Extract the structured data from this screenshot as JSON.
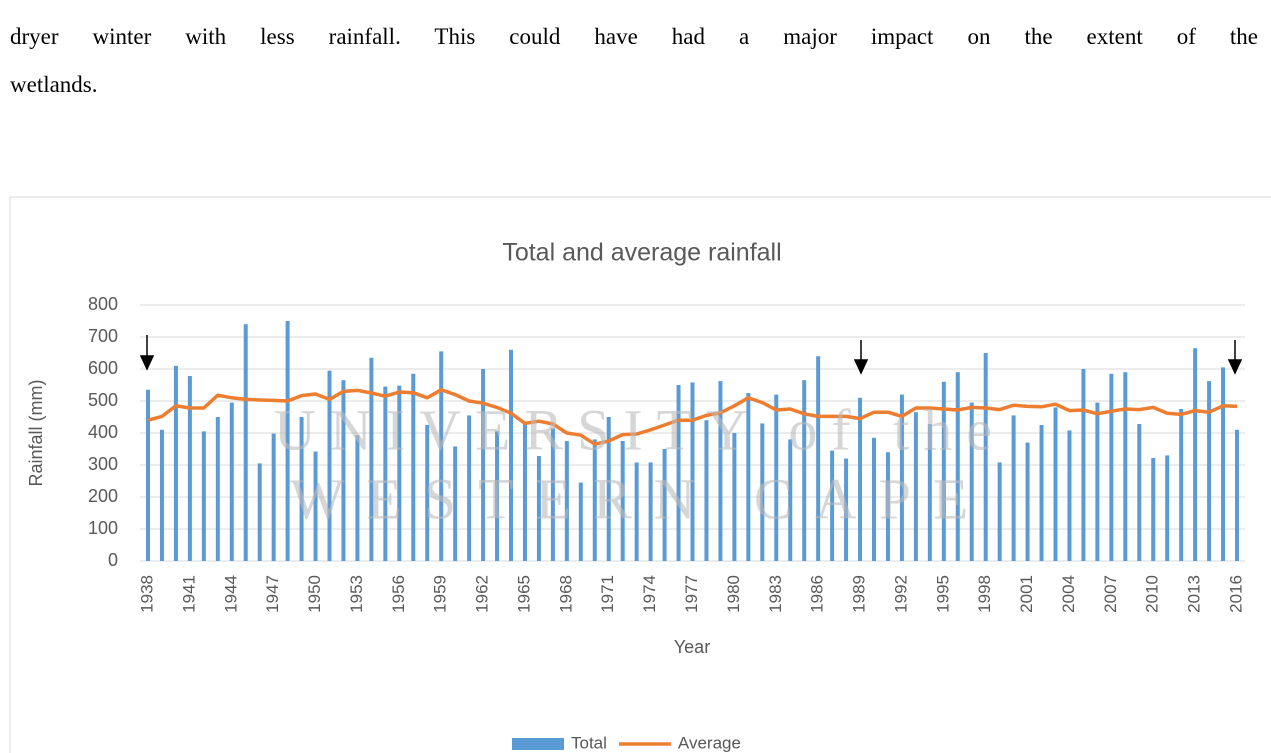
{
  "paragraph": [
    "dryer winter with less rainfall. This could have had a major impact on the extent of the",
    "wetlands."
  ],
  "watermark": [
    "UNIVERSITY of the",
    "WESTERN CAPE"
  ],
  "chart_data": {
    "type": "bar_line",
    "title": "Total and average rainfall",
    "x_label": "Year",
    "y_label": "Rainfall (mm)",
    "categories": [
      "1938",
      null,
      null,
      "1941",
      null,
      null,
      "1944",
      null,
      null,
      "1947",
      null,
      null,
      "1950",
      null,
      null,
      "1953",
      null,
      null,
      "1956",
      null,
      null,
      "1959",
      null,
      null,
      "1962",
      null,
      null,
      "1965",
      null,
      null,
      "1968",
      null,
      null,
      "1971",
      null,
      null,
      "1974",
      null,
      null,
      "1977",
      null,
      null,
      "1980",
      null,
      null,
      "1983",
      null,
      null,
      "1986",
      null,
      null,
      "1989",
      null,
      null,
      "1992",
      null,
      null,
      "1995",
      null,
      null,
      "1998",
      null,
      null,
      "2001",
      null,
      null,
      "2004",
      null,
      null,
      "2007",
      null,
      null,
      "2010",
      null,
      null,
      "2013",
      null,
      null,
      "2016"
    ],
    "series": [
      {
        "name": "Total",
        "type": "bar",
        "color": "#5b9bd5",
        "values": [
          535,
          410,
          610,
          578,
          405,
          450,
          495,
          740,
          305,
          398,
          750,
          450,
          342,
          595,
          565,
          393,
          635,
          545,
          548,
          585,
          425,
          655,
          358,
          455,
          600,
          405,
          660,
          430,
          328,
          415,
          375,
          245,
          380,
          450,
          375,
          308,
          308,
          350,
          550,
          558,
          440,
          562,
          400,
          525,
          430,
          520,
          380,
          565,
          640,
          345,
          320,
          510,
          385,
          340,
          520,
          465,
          428,
          560,
          590,
          495,
          650,
          308,
          455,
          370,
          425,
          480,
          408,
          600,
          495,
          585,
          590,
          428,
          322,
          330,
          475,
          665,
          562,
          605,
          410
        ]
      },
      {
        "name": "Average",
        "type": "line",
        "color": "#ed7d31",
        "values": [
          440,
          452,
          485,
          478,
          478,
          518,
          510,
          505,
          503,
          502,
          500,
          517,
          522,
          505,
          530,
          533,
          525,
          515,
          528,
          526,
          510,
          535,
          520,
          500,
          493,
          480,
          462,
          430,
          437,
          428,
          400,
          393,
          365,
          375,
          395,
          397,
          410,
          425,
          440,
          440,
          455,
          463,
          485,
          510,
          495,
          472,
          475,
          460,
          452,
          452,
          452,
          445,
          465,
          465,
          452,
          478,
          478,
          475,
          472,
          480,
          478,
          473,
          487,
          483,
          482,
          490,
          470,
          472,
          460,
          468,
          475,
          473,
          480,
          462,
          458,
          470,
          465,
          485,
          483
        ]
      }
    ],
    "ylim": [
      0,
      800
    ],
    "yticks": [
      0,
      100,
      200,
      300,
      400,
      500,
      600,
      700,
      800
    ],
    "grid": true,
    "legend": "bottom"
  }
}
